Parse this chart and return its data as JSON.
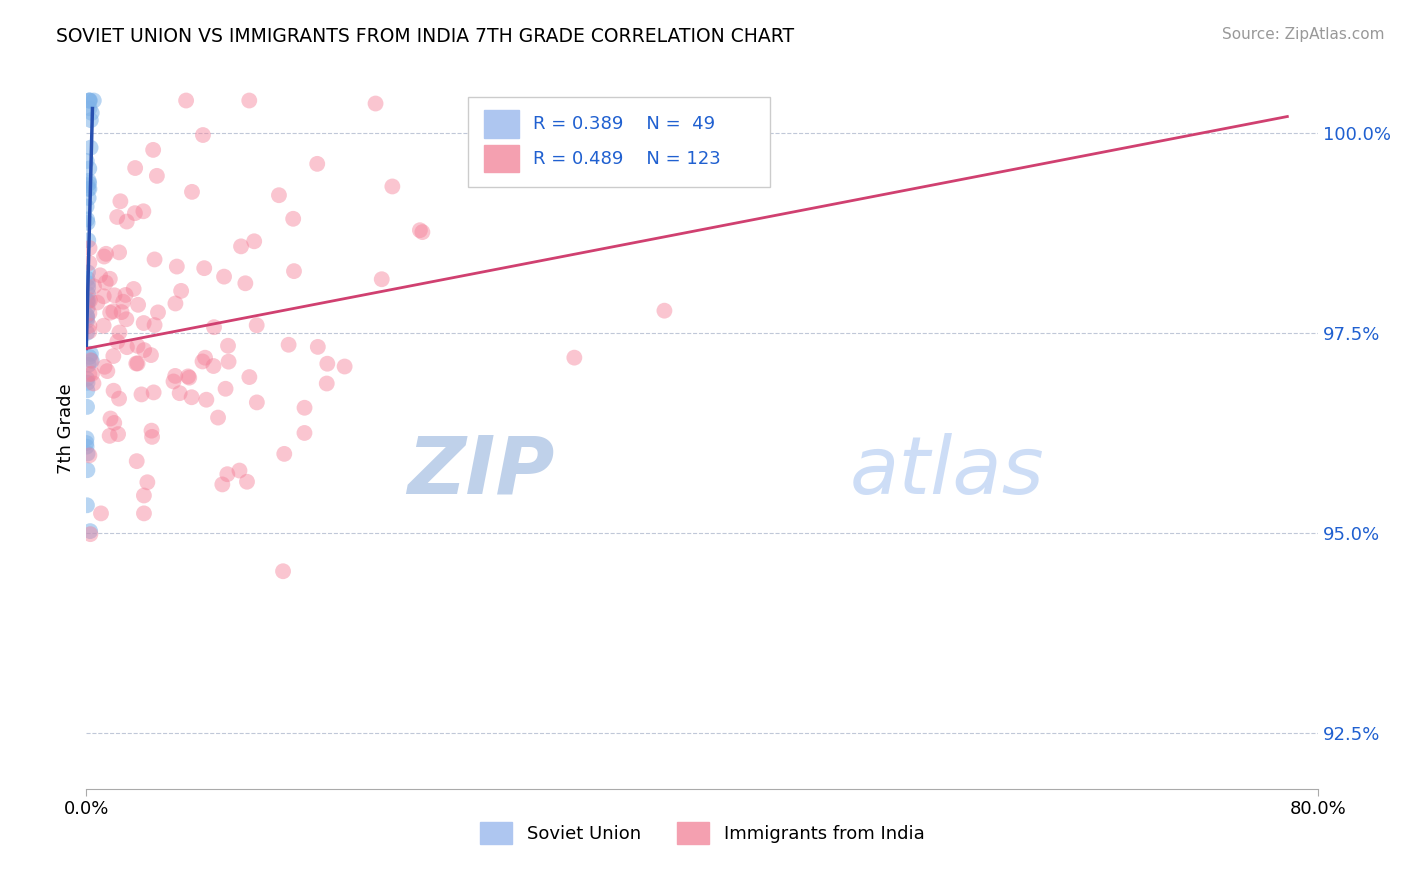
{
  "title": "SOVIET UNION VS IMMIGRANTS FROM INDIA 7TH GRADE CORRELATION CHART",
  "source_text": "Source: ZipAtlas.com",
  "ylabel": "7th Grade",
  "xlim": [
    0.0,
    80.0
  ],
  "ylim": [
    91.8,
    100.8
  ],
  "x_ticks": [
    0.0,
    80.0
  ],
  "x_tick_labels": [
    "0.0%",
    "80.0%"
  ],
  "y_ticks": [
    92.5,
    95.0,
    97.5,
    100.0
  ],
  "y_tick_labels": [
    "92.5%",
    "95.0%",
    "97.5%",
    "100.0%"
  ],
  "legend_entries": [
    {
      "label": "Soviet Union",
      "color": "#aec6f0",
      "R": "0.389",
      "N": "49"
    },
    {
      "label": "Immigrants from India",
      "color": "#f4a0b0",
      "R": "0.489",
      "N": "123"
    }
  ],
  "watermark_zip_color": "#b8cce8",
  "watermark_atlas_color": "#c8daf5",
  "blue_scatter_color": "#7fb3e8",
  "pink_scatter_color": "#f48098",
  "blue_line_color": "#2850b0",
  "pink_line_color": "#d04070",
  "legend_text_color": "#2060d0",
  "ytick_color": "#2060d0",
  "source_color": "#999999",
  "blue_line_x0": 0.0,
  "blue_line_y0": 97.3,
  "blue_line_x1": 0.4,
  "blue_line_y1": 100.3,
  "pink_line_x0": 0.0,
  "pink_line_y0": 97.3,
  "pink_line_x1": 78.0,
  "pink_line_y1": 100.2
}
